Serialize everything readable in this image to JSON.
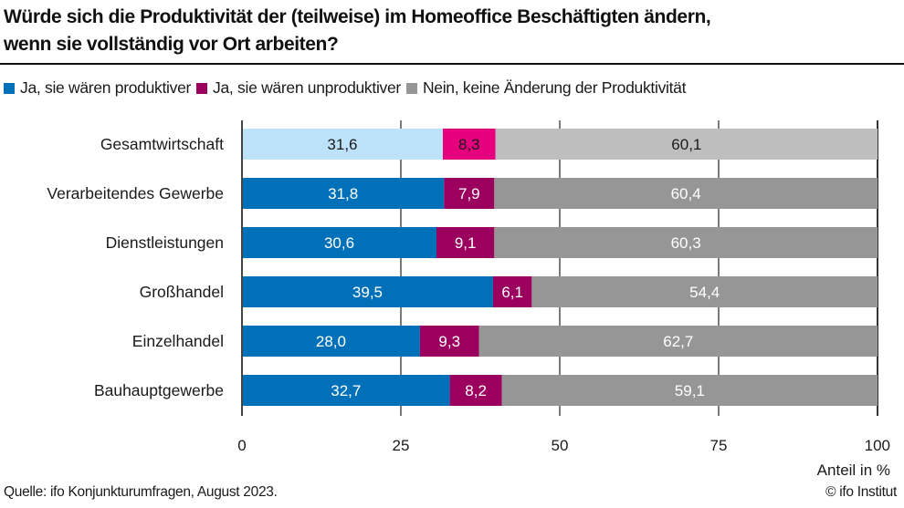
{
  "header": {
    "title_line1": "Würde sich die Produktivität der (teilweise) im Homeoffice Beschäftigten ändern,",
    "title_line2": "wenn sie vollständig vor Ort arbeiten?"
  },
  "footer": {
    "source": "Quelle: ifo Konjunkturumfragen, August 2023.",
    "copyright": "© ifo Institut"
  },
  "colors": {
    "productive": "#0070b8",
    "unproductive": "#9b005f",
    "no_change": "#969696",
    "highlight_productive": "#bde3fa",
    "highlight_unproductive": "#e6007e",
    "highlight_no_change": "#bebebe",
    "grid": "#333333"
  },
  "chart_data": {
    "type": "bar",
    "orientation": "horizontal",
    "stacked": true,
    "title": "Würde sich die Produktivität der (teilweise) im Homeoffice Beschäftigten ändern, wenn sie vollständig vor Ort arbeiten?",
    "xlabel": "Anteil in %",
    "ylabel": "",
    "xlim": [
      0,
      100
    ],
    "xticks": [
      0,
      25,
      50,
      75,
      100
    ],
    "xtick_labels": [
      "0",
      "25",
      "50",
      "75",
      "100"
    ],
    "grid": true,
    "legend_position": "top",
    "highlighted_category": "Gesamtwirtschaft",
    "categories": [
      "Gesamtwirtschaft",
      "Verarbeitendes Gewerbe",
      "Dienstleistungen",
      "Großhandel",
      "Einzelhandel",
      "Bauhauptgewerbe"
    ],
    "series": [
      {
        "name": "Ja, sie wären produktiver",
        "values": [
          31.6,
          31.8,
          30.6,
          39.5,
          28.0,
          32.7
        ],
        "labels": [
          "31,6",
          "31,8",
          "30,6",
          "39,5",
          "28,0",
          "32,7"
        ]
      },
      {
        "name": "Ja, sie wären unproduktiver",
        "values": [
          8.3,
          7.9,
          9.1,
          6.1,
          9.3,
          8.2
        ],
        "labels": [
          "8,3",
          "7,9",
          "9,1",
          "6,1",
          "9,3",
          "8,2"
        ]
      },
      {
        "name": "Nein, keine Änderung der Produktivität",
        "values": [
          60.1,
          60.4,
          60.3,
          54.4,
          62.7,
          59.1
        ],
        "labels": [
          "60,1",
          "60,4",
          "60,3",
          "54,4",
          "62,7",
          "59,1"
        ]
      }
    ]
  }
}
